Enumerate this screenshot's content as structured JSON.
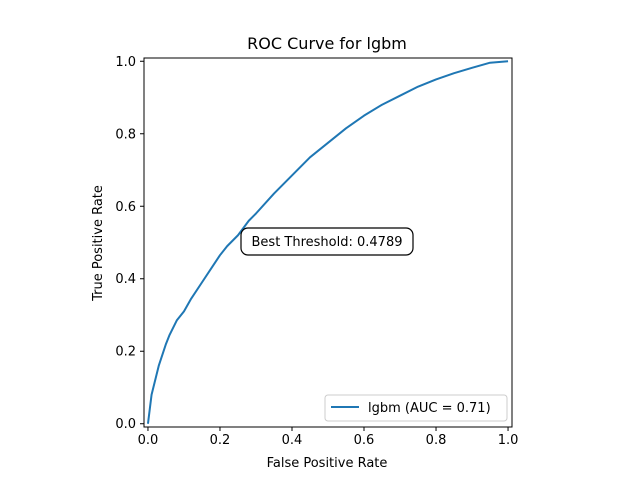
{
  "chart_data": {
    "type": "line",
    "title": "ROC Curve for lgbm",
    "xlabel": "False Positive Rate",
    "ylabel": "True Positive Rate",
    "xlim": [
      0.0,
      1.0
    ],
    "ylim": [
      0.0,
      1.0
    ],
    "xticks": [
      "0.0",
      "0.2",
      "0.4",
      "0.6",
      "0.8",
      "1.0"
    ],
    "yticks": [
      "0.0",
      "0.2",
      "0.4",
      "0.6",
      "0.8",
      "1.0"
    ],
    "grid": false,
    "legend_position": "lower-right",
    "annotation": "Best Threshold: 0.4789",
    "series": [
      {
        "name": "lgbm (AUC = 0.71)",
        "color": "#1f77b4",
        "x": [
          0.0,
          0.005,
          0.01,
          0.02,
          0.03,
          0.04,
          0.05,
          0.06,
          0.08,
          0.1,
          0.12,
          0.15,
          0.18,
          0.2,
          0.22,
          0.25,
          0.28,
          0.3,
          0.35,
          0.4,
          0.45,
          0.5,
          0.55,
          0.6,
          0.65,
          0.7,
          0.75,
          0.8,
          0.85,
          0.9,
          0.95,
          1.0
        ],
        "y": [
          0.0,
          0.04,
          0.08,
          0.12,
          0.16,
          0.19,
          0.22,
          0.245,
          0.285,
          0.31,
          0.345,
          0.39,
          0.435,
          0.465,
          0.49,
          0.52,
          0.56,
          0.58,
          0.635,
          0.685,
          0.735,
          0.775,
          0.815,
          0.85,
          0.88,
          0.905,
          0.93,
          0.95,
          0.967,
          0.982,
          0.996,
          1.0
        ]
      }
    ]
  }
}
